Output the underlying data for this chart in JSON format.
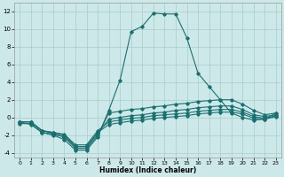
{
  "xlabel": "Humidex (Indice chaleur)",
  "bg_color": "#cce8e8",
  "line_color": "#1a7070",
  "grid_color": "#aacccc",
  "xlim": [
    -0.5,
    23.5
  ],
  "ylim": [
    -4.5,
    13.0
  ],
  "xticks": [
    0,
    1,
    2,
    3,
    4,
    5,
    6,
    7,
    8,
    9,
    10,
    11,
    12,
    13,
    14,
    15,
    16,
    17,
    18,
    19,
    20,
    21,
    22,
    23
  ],
  "yticks": [
    -4,
    -2,
    0,
    2,
    4,
    6,
    8,
    10,
    12
  ],
  "main_x": [
    0,
    1,
    2,
    3,
    4,
    5,
    6,
    7,
    8,
    9,
    10,
    11,
    12,
    13,
    14,
    15,
    16,
    17,
    18,
    19,
    20,
    21,
    22,
    23
  ],
  "main_y": [
    -0.5,
    -0.8,
    -1.7,
    -2.0,
    -2.5,
    -3.7,
    -3.7,
    -2.2,
    0.8,
    4.2,
    9.7,
    10.3,
    11.8,
    11.7,
    11.7,
    9.0,
    5.0,
    3.5,
    2.0,
    0.5,
    0.0,
    -0.3,
    -0.2,
    0.5
  ],
  "line2_x": [
    0,
    1,
    2,
    3,
    4,
    5,
    6,
    7,
    8,
    9,
    10,
    11,
    12,
    13,
    14,
    15,
    16,
    17,
    18,
    19,
    20,
    21,
    22,
    23
  ],
  "line2_y": [
    -0.5,
    -0.5,
    -1.5,
    -1.8,
    -2.2,
    -3.5,
    -3.5,
    -2.0,
    0.5,
    0.7,
    0.9,
    1.0,
    1.2,
    1.3,
    1.5,
    1.6,
    1.8,
    1.9,
    2.0,
    2.0,
    1.5,
    0.8,
    0.3,
    0.5
  ],
  "line3_x": [
    0,
    1,
    2,
    3,
    4,
    5,
    6,
    7,
    8,
    9,
    10,
    11,
    12,
    13,
    14,
    15,
    16,
    17,
    18,
    19,
    20,
    21,
    22,
    23
  ],
  "line3_y": [
    -0.5,
    -0.5,
    -1.5,
    -1.7,
    -2.0,
    -3.3,
    -3.3,
    -1.8,
    -0.2,
    0.0,
    0.2,
    0.3,
    0.5,
    0.6,
    0.8,
    0.9,
    1.1,
    1.2,
    1.3,
    1.3,
    0.9,
    0.3,
    0.1,
    0.3
  ],
  "line4_x": [
    0,
    1,
    2,
    3,
    4,
    5,
    6,
    7,
    8,
    9,
    10,
    11,
    12,
    13,
    14,
    15,
    16,
    17,
    18,
    19,
    20,
    21,
    22,
    23
  ],
  "line4_y": [
    -0.5,
    -0.5,
    -1.5,
    -1.7,
    -1.9,
    -3.1,
    -3.1,
    -1.5,
    -0.5,
    -0.3,
    -0.1,
    0.0,
    0.2,
    0.3,
    0.4,
    0.5,
    0.7,
    0.8,
    0.9,
    0.9,
    0.6,
    0.1,
    -0.1,
    0.2
  ],
  "line5_x": [
    0,
    1,
    2,
    3,
    4,
    5,
    6,
    7,
    8,
    9,
    10,
    11,
    12,
    13,
    14,
    15,
    16,
    17,
    18,
    19,
    20,
    21,
    22,
    23
  ],
  "line5_y": [
    -0.7,
    -0.7,
    -1.7,
    -1.9,
    -2.2,
    -3.3,
    -3.3,
    -1.7,
    -0.8,
    -0.6,
    -0.4,
    -0.3,
    -0.1,
    0.0,
    0.1,
    0.2,
    0.4,
    0.5,
    0.6,
    0.6,
    0.4,
    -0.1,
    -0.2,
    0.1
  ]
}
